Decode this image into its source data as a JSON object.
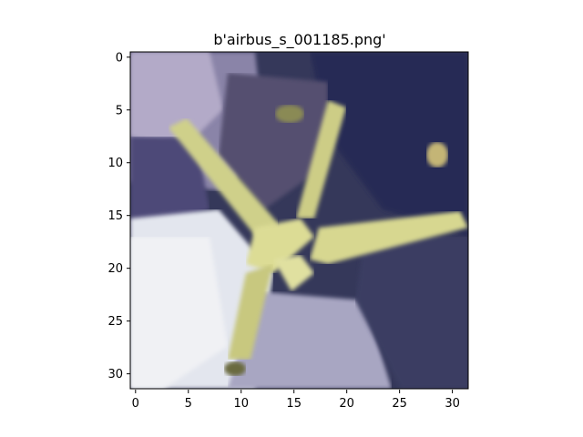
{
  "title": "b'airbus_s_001185.png'",
  "image": {
    "description_key": "airbus-photo",
    "pixel_grid": [
      32,
      32
    ]
  },
  "axes": {
    "x_ticks": [
      "0",
      "5",
      "10",
      "15",
      "20",
      "25",
      "30"
    ],
    "y_ticks": [
      "0",
      "5",
      "10",
      "15",
      "20",
      "25",
      "30"
    ],
    "x_range": [
      -0.5,
      31.5
    ],
    "y_range": [
      31.5,
      -0.5
    ]
  },
  "colors": {
    "frame": "#000000",
    "sky_dark": "#2a2e52",
    "sky_mid": "#4a4e6e",
    "haze_light": "#c9c4dc",
    "white_patch": "#e8ebf0",
    "wing_yellow": "#d8d890",
    "wing_shadow": "#a6a65e"
  }
}
